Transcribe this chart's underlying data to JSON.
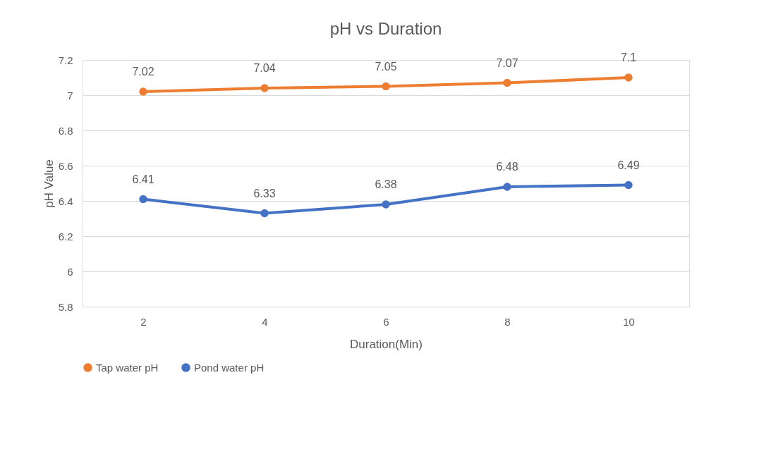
{
  "chart_data": {
    "type": "line",
    "title": "pH vs Duration",
    "xlabel": "Duration(Min)",
    "ylabel": "pH Value",
    "categories": [
      "2",
      "4",
      "6",
      "8",
      "10"
    ],
    "series": [
      {
        "name": "Tap water pH",
        "color": "#ed7d31",
        "values": [
          7.02,
          7.04,
          7.05,
          7.07,
          7.1
        ]
      },
      {
        "name": "Pond water pH",
        "color": "#4472c4",
        "values": [
          6.41,
          6.33,
          6.38,
          6.48,
          6.49
        ]
      }
    ],
    "ylim": [
      5.8,
      7.2
    ],
    "yticks": [
      5.8,
      6,
      6.2,
      6.4,
      6.6,
      6.8,
      7,
      7.2
    ],
    "grid": "y",
    "legend": "bottom",
    "marker": "circle",
    "line_style": "solid",
    "data_labels": true
  }
}
